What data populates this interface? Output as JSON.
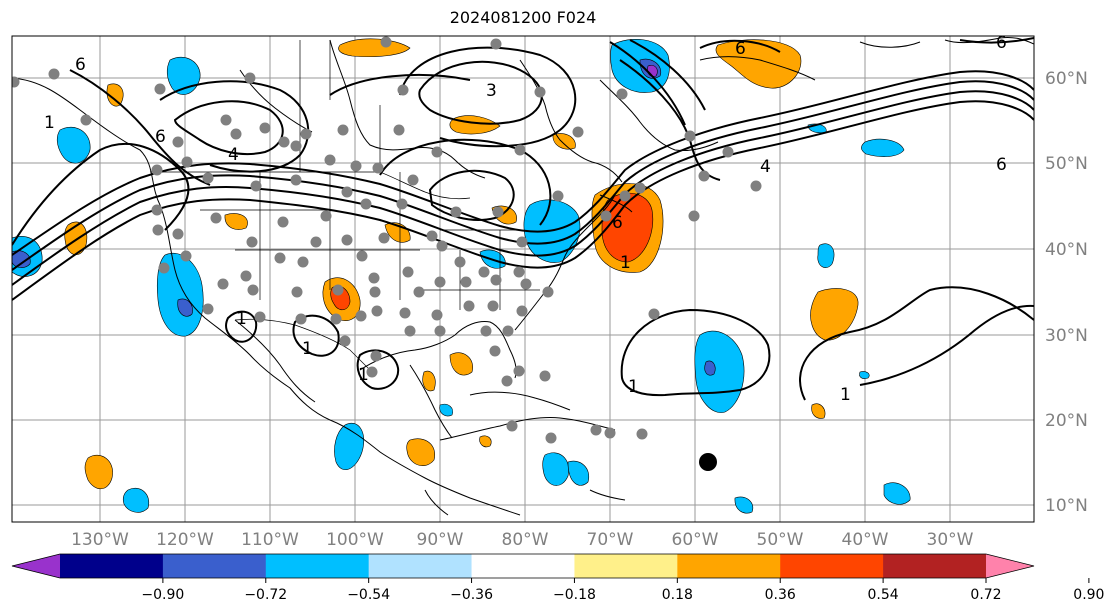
{
  "title": "2024081200 F024",
  "map": {
    "lon_labels": [
      "130°W",
      "120°W",
      "110°W",
      "100°W",
      "90°W",
      "80°W",
      "70°W",
      "60°W",
      "50°W",
      "40°W",
      "30°W"
    ],
    "lat_labels": [
      "60°N",
      "50°N",
      "40°N",
      "30°N",
      "20°N",
      "10°N"
    ],
    "contour_labels": [
      "6",
      "3",
      "1",
      "4",
      "6",
      "6",
      "4",
      "1",
      "6",
      "6",
      "1",
      "1",
      "1",
      "1",
      "6",
      "1"
    ]
  },
  "colorbar": {
    "ticks": [
      "−0.90",
      "−0.72",
      "−0.54",
      "−0.36",
      "−0.18",
      "0.18",
      "0.36",
      "0.54",
      "0.72",
      "0.90"
    ],
    "colors": [
      "#9932cc",
      "#00008b",
      "#3a5fcd",
      "#00bfff",
      "#b0e2ff",
      "#ffffff",
      "#fff08a",
      "#ffa500",
      "#ff4500",
      "#b22222",
      "#ff82ab"
    ]
  },
  "legend_colors": {
    "orange": "#ffa500",
    "red_orange": "#ff4500",
    "deep_sky_blue": "#00bfff",
    "purple": "#9932cc",
    "station_grey": "#808080"
  }
}
